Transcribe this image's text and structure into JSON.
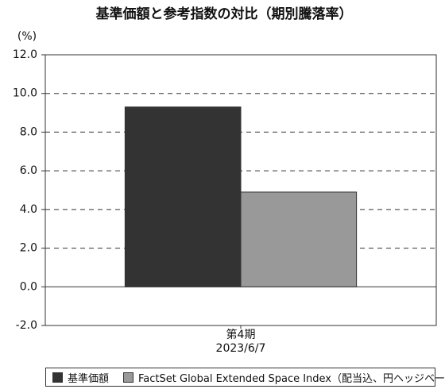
{
  "chart_data": {
    "type": "bar",
    "title": "基準価額と参考指数の対比（期別騰落率）",
    "y_unit": "(%)",
    "categories": [
      "第4期\n2023/6/7"
    ],
    "series": [
      {
        "name": "基準価額",
        "color": "#333333",
        "values": [
          9.3
        ]
      },
      {
        "name": "FactSet Global Extended Space Index（配当込、円ヘッジベース）",
        "color": "#999999",
        "values": [
          4.9
        ]
      }
    ],
    "ylim": [
      -2,
      12
    ],
    "yticks": [
      {
        "value": -2,
        "label": "-2.0"
      },
      {
        "value": 0,
        "label": "0.0"
      },
      {
        "value": 2,
        "label": "2.0"
      },
      {
        "value": 4,
        "label": "4.0"
      },
      {
        "value": 6,
        "label": "6.0"
      },
      {
        "value": 8,
        "label": "8.0"
      },
      {
        "value": 10,
        "label": "10.0"
      },
      {
        "value": 12,
        "label": "12.0"
      }
    ],
    "grid": true
  }
}
